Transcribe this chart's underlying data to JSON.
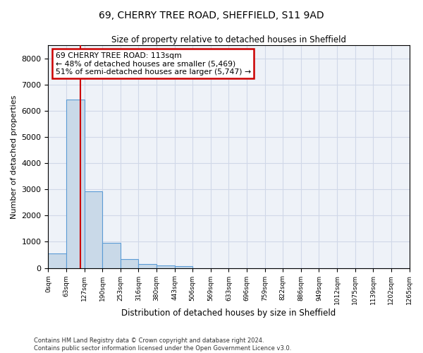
{
  "title_line1": "69, CHERRY TREE ROAD, SHEFFIELD, S11 9AD",
  "title_line2": "Size of property relative to detached houses in Sheffield",
  "xlabel": "Distribution of detached houses by size in Sheffield",
  "ylabel": "Number of detached properties",
  "footnote": "Contains HM Land Registry data © Crown copyright and database right 2024.\nContains public sector information licensed under the Open Government Licence v3.0.",
  "bin_labels": [
    "0sqm",
    "63sqm",
    "127sqm",
    "190sqm",
    "253sqm",
    "316sqm",
    "380sqm",
    "443sqm",
    "506sqm",
    "569sqm",
    "633sqm",
    "696sqm",
    "759sqm",
    "822sqm",
    "886sqm",
    "949sqm",
    "1012sqm",
    "1075sqm",
    "1139sqm",
    "1202sqm",
    "1265sqm"
  ],
  "bar_heights": [
    560,
    6430,
    2930,
    970,
    340,
    155,
    100,
    65,
    0,
    0,
    0,
    0,
    0,
    0,
    0,
    0,
    0,
    0,
    0,
    0
  ],
  "bar_color": "#c9d9e8",
  "bar_edgecolor": "#5b9bd5",
  "annotation_text": "69 CHERRY TREE ROAD: 113sqm\n← 48% of detached houses are smaller (5,469)\n51% of semi-detached houses are larger (5,747) →",
  "annotation_box_facecolor": "#ffffff",
  "annotation_box_edgecolor": "#cc0000",
  "red_line_color": "#cc0000",
  "grid_color": "#d0d8e8",
  "background_color": "#eef2f8",
  "ylim": [
    0,
    8500
  ],
  "yticks": [
    0,
    1000,
    2000,
    3000,
    4000,
    5000,
    6000,
    7000,
    8000
  ],
  "num_bins": 20
}
